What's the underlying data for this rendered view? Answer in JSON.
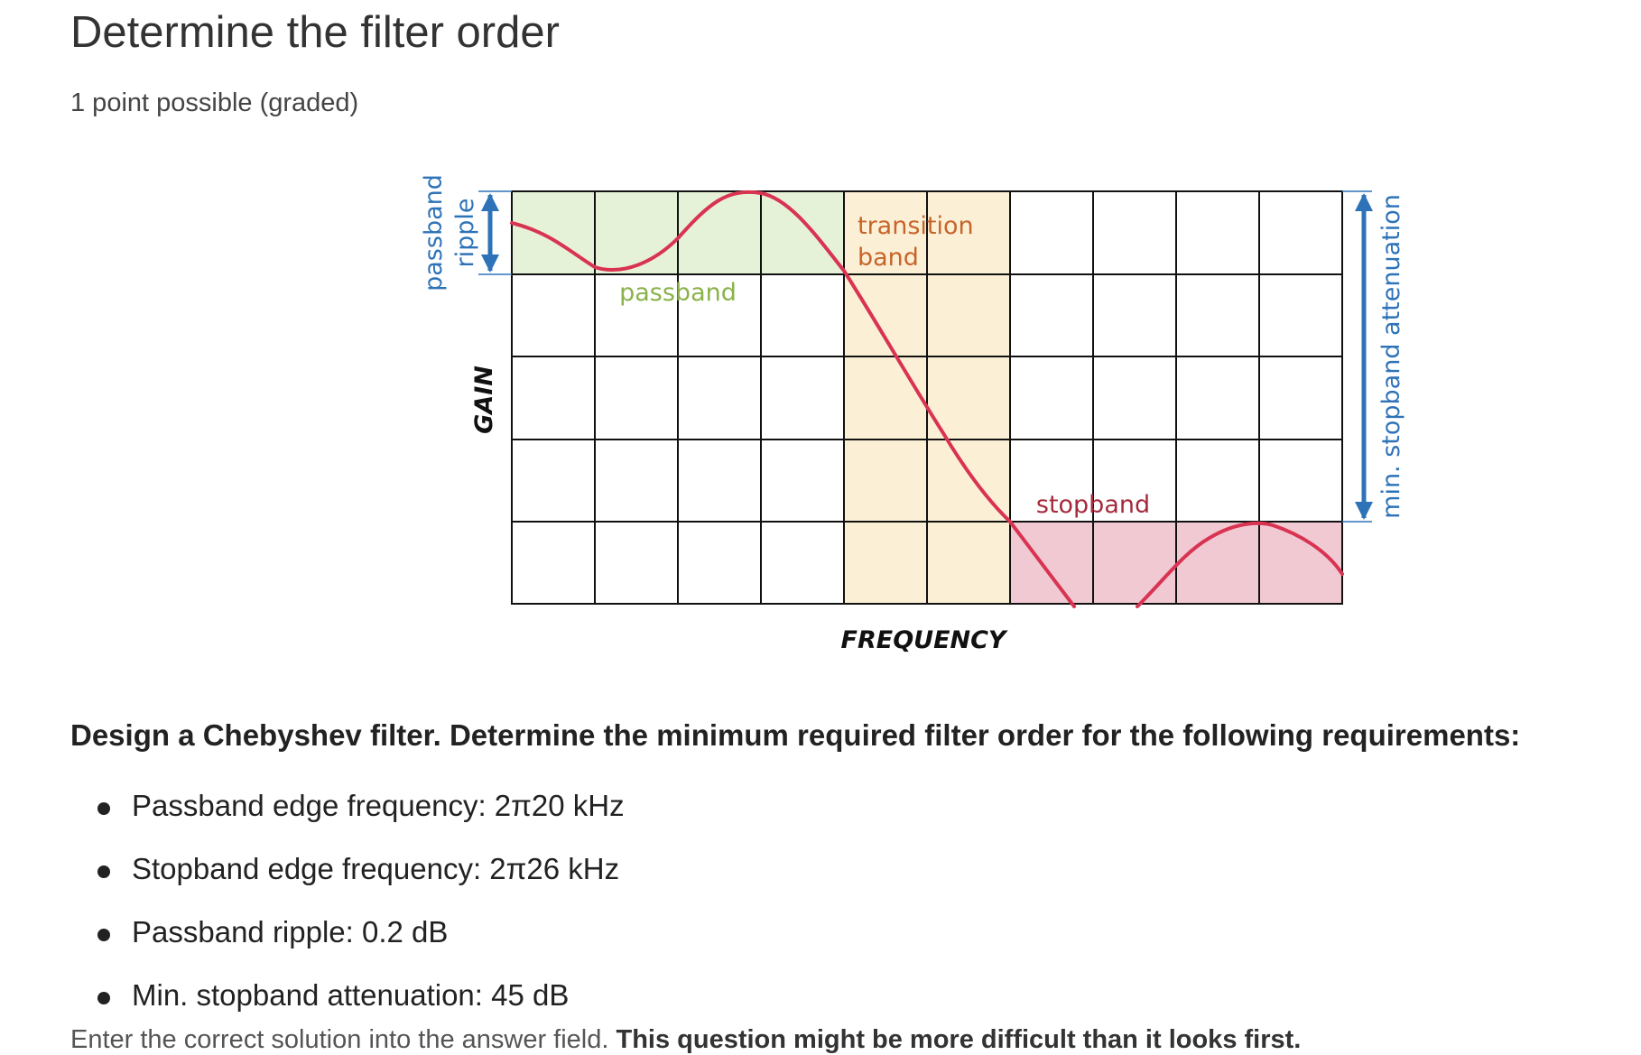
{
  "problem": {
    "title": "Determine the filter order",
    "points": "1 point possible (graded)"
  },
  "figure": {
    "labels": {
      "passband_ripple_line1": "passband",
      "passband_ripple_line2": "ripple",
      "gain": "GAIN",
      "frequency": "FREQUENCY",
      "passband": "passband",
      "transition_line1": "transition",
      "transition_line2": "band",
      "stopband": "stopband",
      "min_stopband_attenuation": "min. stopband attenuation"
    },
    "colors": {
      "passband_fill": "#e6f2d8",
      "transition_fill": "#fbf0d6",
      "stopband_fill": "#f1c9d2",
      "curve": "#d93352",
      "arrow": "#2e73b8",
      "passband_label": "#8ab24a",
      "transition_label": "#c8642a",
      "stopband_label": "#a52a3c"
    }
  },
  "question": {
    "text": "Design a Chebyshev filter. Determine the minimum required filter order for the following requirements:",
    "items": [
      "Passband edge frequency: 2π20 kHz",
      "Stopband edge frequency: 2π26 kHz",
      "Passband ripple: 0.2 dB",
      "Min. stopband attenuation: 45 dB"
    ]
  },
  "instructions": {
    "normal": "Enter the correct solution into the answer field. ",
    "bold": "This question might be more difficult than it looks first."
  }
}
